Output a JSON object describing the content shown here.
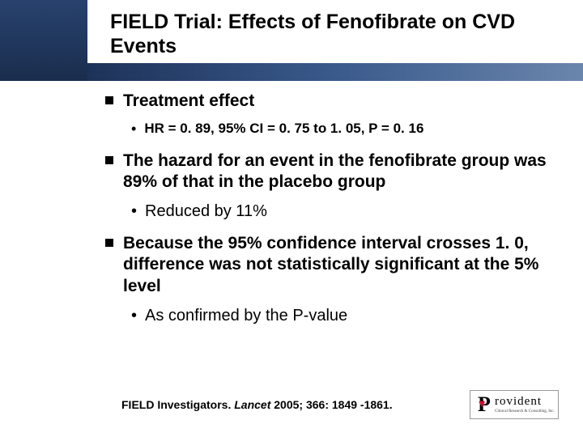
{
  "title": "FIELD Trial: Effects of Fenofibrate on CVD Events",
  "colors": {
    "band_gradient_top": "#28426e",
    "band_gradient_bottom": "#1a2d4d",
    "underline_start": "#1d3258",
    "underline_mid": "#3a5a8c",
    "underline_end": "#6b86ac",
    "text": "#000000",
    "heart": "#d01030"
  },
  "bullets": [
    {
      "level": 1,
      "text": "Treatment effect"
    },
    {
      "level": 2,
      "style": "bold-small",
      "text": "HR = 0. 89, 95% CI = 0. 75 to 1. 05, P = 0. 16"
    },
    {
      "level": 1,
      "text": "The hazard for an event in the fenofibrate group was 89% of that in the placebo group"
    },
    {
      "level": 2,
      "style": "regular",
      "text": "Reduced by 11%"
    },
    {
      "level": 1,
      "text": "Because the 95% confidence interval crosses 1. 0, difference was not statistically significant at the 5% level"
    },
    {
      "level": 2,
      "style": "regular",
      "text": "As confirmed by the P-value"
    }
  ],
  "citation_prefix": "FIELD Investigators. ",
  "citation_journal": "Lancet ",
  "citation_suffix": "2005; 366: 1849 -1861.",
  "logo": {
    "letter": "P",
    "heart": "♥",
    "word": "rovident",
    "sub": "Clinical Research & Consulting, Inc."
  }
}
